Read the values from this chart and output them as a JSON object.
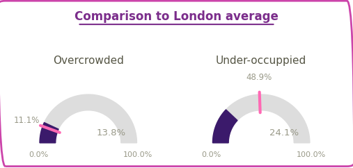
{
  "title": "Comparison to London average",
  "title_color": "#7B2D8B",
  "charts": [
    {
      "label": "Overcrowded",
      "ward_value": 13.8,
      "london_avg": 11.1,
      "min_val": 0.0,
      "max_val": 100.0
    },
    {
      "label": "Under-occuppied",
      "ward_value": 24.1,
      "london_avg": 48.9,
      "min_val": 0.0,
      "max_val": 100.0
    }
  ],
  "bg_color": "#ffffff",
  "border_color": "#CC44AA",
  "gauge_bg_color": "#DDDDDD",
  "ward_color": "#3B1A6B",
  "london_color": "#FF69B4",
  "label_color": "#999988",
  "value_color": "#999988",
  "chart_label_color": "#555544",
  "figsize": [
    5.07,
    2.42
  ],
  "dpi": 100
}
